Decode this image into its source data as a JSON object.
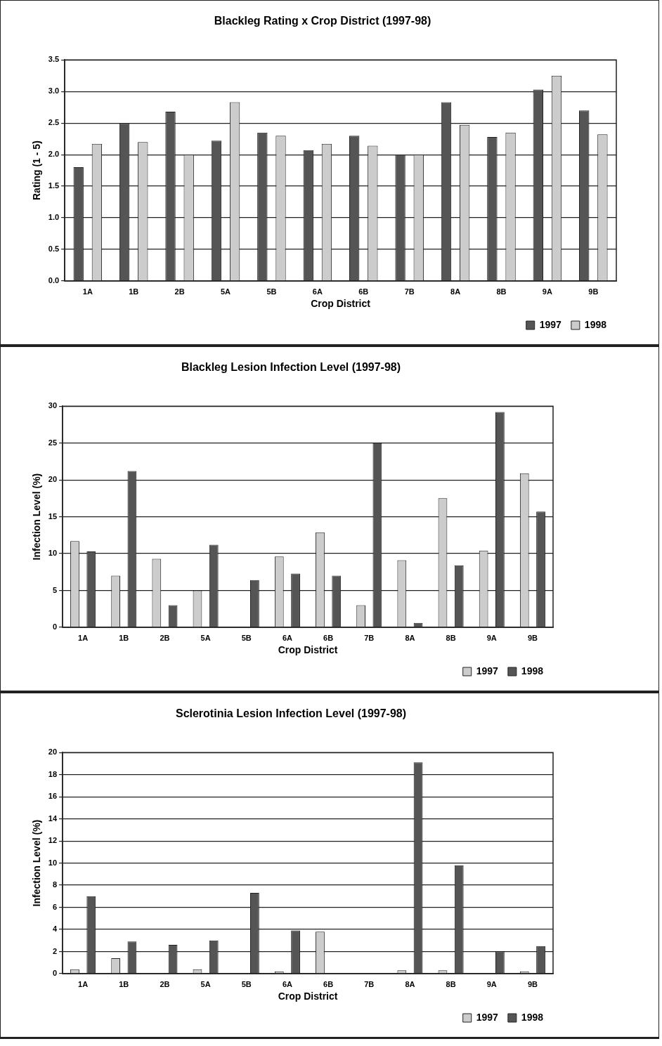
{
  "chart_data": [
    {
      "type": "bar",
      "title": "Blackleg Rating x Crop District (1997-98)",
      "xlabel": "Crop District",
      "ylabel": "Rating (1 - 5)",
      "categories": [
        "1A",
        "1B",
        "2B",
        "5A",
        "5B",
        "6A",
        "6B",
        "7B",
        "8A",
        "8B",
        "9A",
        "9B"
      ],
      "series": [
        {
          "name": "1997",
          "color": "#555555",
          "values": [
            1.8,
            2.5,
            2.68,
            2.22,
            2.35,
            2.07,
            2.3,
            2.0,
            2.83,
            2.28,
            3.03,
            2.7
          ]
        },
        {
          "name": "1998",
          "color": "#cccccc",
          "values": [
            2.17,
            2.2,
            2.0,
            2.83,
            2.3,
            2.17,
            2.14,
            2.0,
            2.47,
            2.35,
            3.25,
            2.32
          ]
        }
      ],
      "ylim": [
        0,
        3.5
      ],
      "yticks": [
        {
          "value": 0,
          "label": "0.0"
        },
        {
          "value": 0.5,
          "label": "0.5"
        },
        {
          "value": 1,
          "label": "1.0"
        },
        {
          "value": 1.5,
          "label": "1.5"
        },
        {
          "value": 2,
          "label": "2.0"
        },
        {
          "value": 2.5,
          "label": "2.5"
        },
        {
          "value": 3,
          "label": "3.0"
        },
        {
          "value": 3.5,
          "label": "3.5"
        }
      ],
      "grid": "y",
      "legend": "bottom right"
    },
    {
      "type": "bar",
      "title": "Blackleg Lesion Infection Level (1997-98)",
      "xlabel": "Crop District",
      "ylabel": "Infection Level (%)",
      "categories": [
        "1A",
        "1B",
        "2B",
        "5A",
        "5B",
        "6A",
        "6B",
        "7B",
        "8A",
        "8B",
        "9A",
        "9B"
      ],
      "series": [
        {
          "name": "1997",
          "color": "#cccccc",
          "values": [
            11.7,
            7.0,
            9.3,
            5.0,
            0,
            9.6,
            12.9,
            3.0,
            9.1,
            17.5,
            10.4,
            20.9
          ]
        },
        {
          "name": "1998",
          "color": "#555555",
          "values": [
            10.3,
            21.2,
            3.0,
            11.2,
            6.4,
            7.3,
            7.0,
            25.0,
            0.6,
            8.4,
            29.2,
            15.7
          ]
        }
      ],
      "ylim": [
        0,
        30
      ],
      "yticks": [
        0,
        5,
        10,
        15,
        20,
        25,
        30
      ],
      "grid": "y",
      "legend": "bottom right"
    },
    {
      "type": "bar",
      "title": "Sclerotinia Lesion Infection Level (1997-98)",
      "xlabel": "Crop District",
      "ylabel": "Infection Level (%)",
      "categories": [
        "1A",
        "1B",
        "2B",
        "5A",
        "5B",
        "6A",
        "6B",
        "7B",
        "8A",
        "8B",
        "9A",
        "9B"
      ],
      "series": [
        {
          "name": "1997",
          "color": "#cccccc",
          "values": [
            0.4,
            1.4,
            0,
            0.4,
            0,
            0.2,
            3.8,
            0,
            0.3,
            0.3,
            0,
            0.2
          ]
        },
        {
          "name": "1998",
          "color": "#555555",
          "values": [
            7.0,
            2.9,
            2.6,
            3.0,
            7.3,
            3.9,
            0,
            0,
            19.1,
            9.8,
            2.0,
            2.5
          ]
        }
      ],
      "ylim": [
        0,
        20
      ],
      "yticks": [
        0,
        2,
        4,
        6,
        8,
        10,
        12,
        14,
        16,
        18,
        20
      ],
      "grid": "y",
      "legend": "bottom right"
    }
  ]
}
